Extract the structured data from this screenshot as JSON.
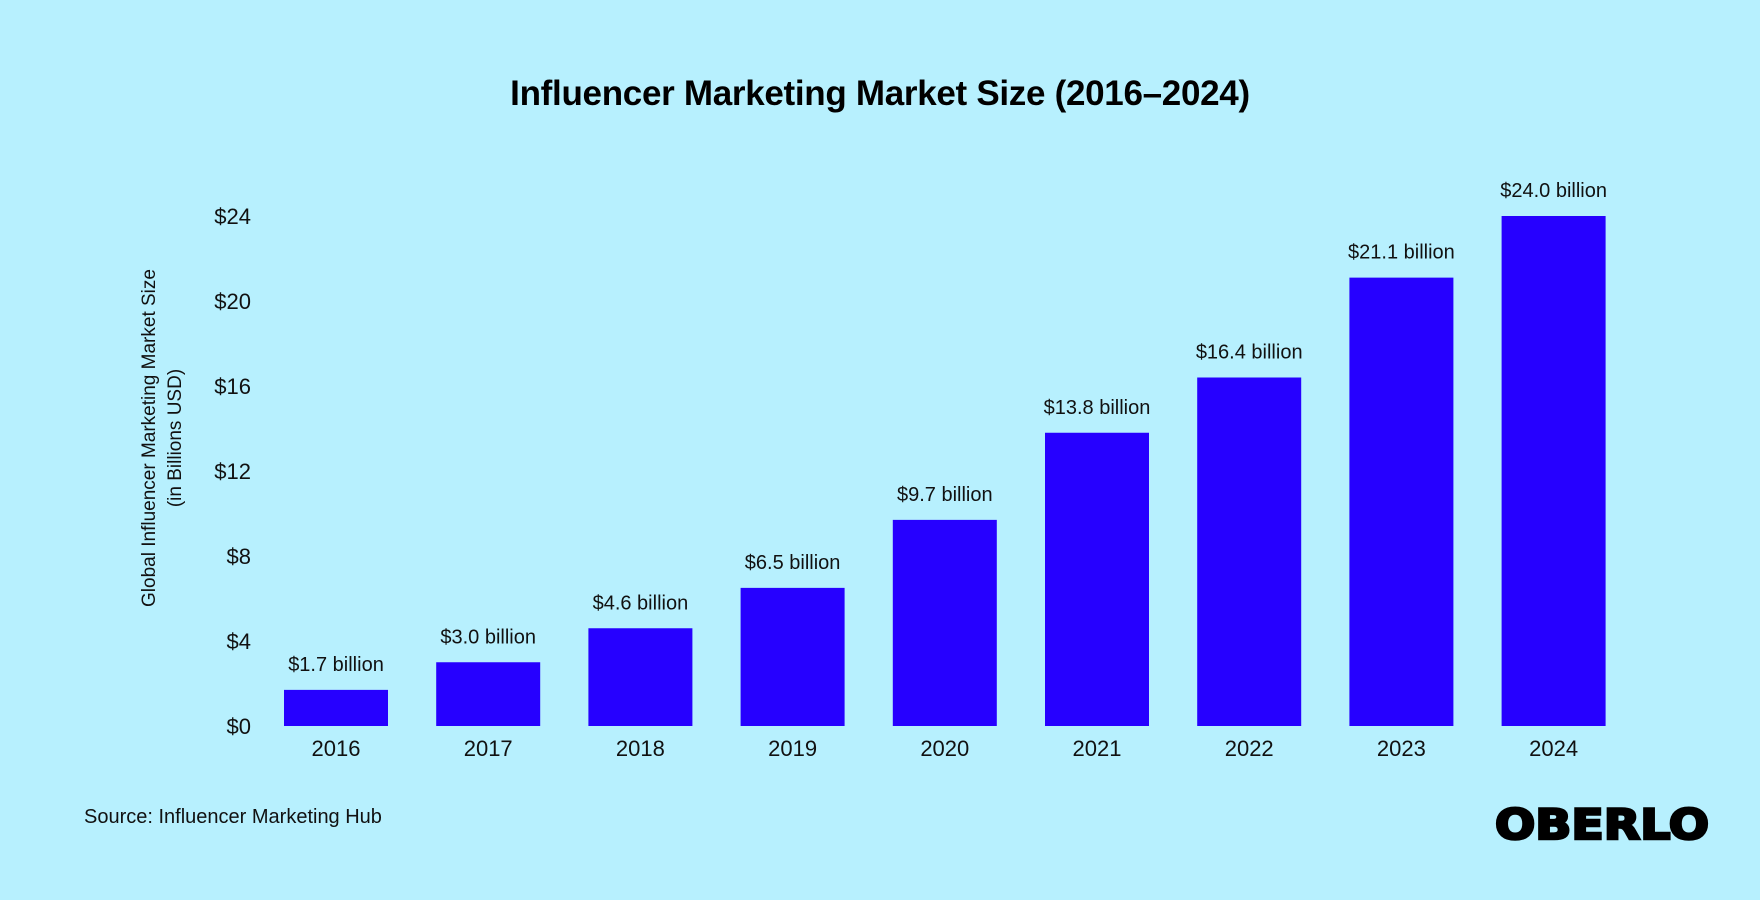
{
  "title": "Influencer Marketing Market Size (2016–2024)",
  "source": "Source: Influencer Marketing Hub",
  "logo_text": "OBERLO",
  "colors": {
    "background": "#b7f0fe",
    "bar": "#2600ff",
    "text": "#111111"
  },
  "chart_data": {
    "type": "bar",
    "title": "Influencer Marketing Market Size (2016–2024)",
    "categories": [
      "2016",
      "2017",
      "2018",
      "2019",
      "2020",
      "2021",
      "2022",
      "2023",
      "2024"
    ],
    "values": [
      1.7,
      3.0,
      4.6,
      6.5,
      9.7,
      13.8,
      16.4,
      21.1,
      24.0
    ],
    "data_labels": [
      "$1.7 billion",
      "$3.0 billion",
      "$4.6 billion",
      "$6.5 billion",
      "$9.7 billion",
      "$13.8 billion",
      "$16.4 billion",
      "$21.1 billion",
      "$24.0 billion"
    ],
    "xlabel": "",
    "ylabel_lines": [
      "Global Influencer Marketing Market Size",
      "(in Billions USD)"
    ],
    "ylim": [
      0,
      24
    ],
    "yticks": [
      0,
      4,
      8,
      12,
      16,
      20,
      24
    ],
    "ytick_labels": [
      "$0",
      "$4",
      "$8",
      "$12",
      "$16",
      "$20",
      "$24"
    ],
    "grid": false,
    "legend": "none"
  }
}
